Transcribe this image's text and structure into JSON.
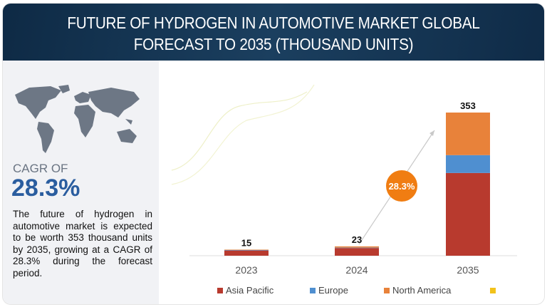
{
  "header": {
    "title_line1": "FUTURE OF HYDROGEN IN AUTOMOTIVE MARKET GLOBAL",
    "title_line2": "FORECAST TO 2035 (THOUSAND UNITS)"
  },
  "left_panel": {
    "cagr_label": "CAGR OF",
    "cagr_value": "28.3%",
    "description": "The future of hydrogen in automotive market is expected to be worth 353 thousand units by 2035, growing at a CAGR of 28.3% during the forecast period."
  },
  "chart_data": {
    "type": "bar",
    "stacked": true,
    "categories": [
      "2023",
      "2024",
      "2035"
    ],
    "totals": [
      15,
      23,
      353
    ],
    "series": [
      {
        "name": "Asia Pacific",
        "color": "#b83a2e",
        "values": [
          13,
          19,
          204
        ]
      },
      {
        "name": "Europe",
        "color": "#4f8fd0",
        "values": [
          1,
          1,
          44
        ]
      },
      {
        "name": "North America",
        "color": "#e8823a",
        "values": [
          1,
          3,
          105
        ]
      },
      {
        "name": "",
        "color": "#f2c21b",
        "values": [
          0,
          0,
          0
        ]
      }
    ],
    "annotation": {
      "label": "28.3%",
      "color": "#f07d12"
    },
    "legend_position": "bottom",
    "grid": false,
    "ylim": [
      0,
      353
    ]
  }
}
